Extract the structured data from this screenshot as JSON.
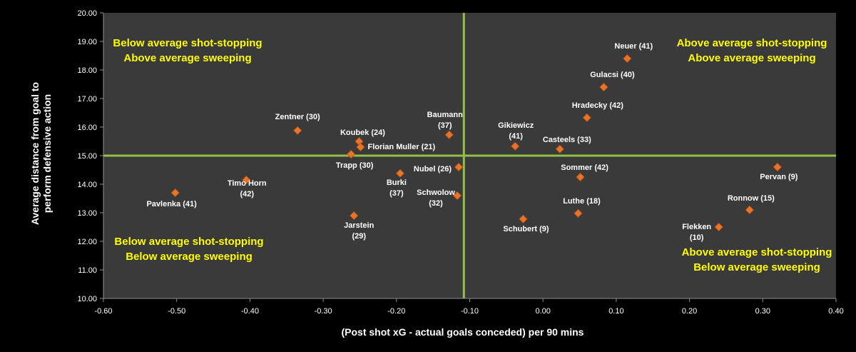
{
  "colors": {
    "background": "#000000",
    "plot_area": "#3a3a3a",
    "reference_line": "#92c047",
    "marker": "#e8742a",
    "quadrant_text": "#ffff00",
    "text": "#ffffff"
  },
  "chart_data": {
    "type": "scatter",
    "xlabel": "(Post shot xG - actual goals conceded) per 90 mins",
    "ylabel": [
      "Average distance from goal to",
      "perform defensive action"
    ],
    "xlim": [
      -0.6,
      0.4
    ],
    "ylim": [
      10.0,
      20.0
    ],
    "x_ticks": [
      "-0.60",
      "-0.50",
      "-0.40",
      "-0.30",
      "-0.20",
      "-0.10",
      "0.00",
      "0.10",
      "0.20",
      "0.30",
      "0.40"
    ],
    "y_ticks": [
      "10.00",
      "11.00",
      "12.00",
      "13.00",
      "14.00",
      "15.00",
      "16.00",
      "17.00",
      "18.00",
      "19.00",
      "20.00"
    ],
    "grid": false,
    "reference_lines": {
      "x": -0.108,
      "y": 15.0
    },
    "quadrant_labels": [
      {
        "lines": [
          "Below average shot-stopping",
          "Above average sweeping"
        ]
      },
      {
        "lines": [
          "Above average shot-stopping",
          "Above average sweeping"
        ]
      },
      {
        "lines": [
          "Below average shot-stopping",
          "Below average sweeping"
        ]
      },
      {
        "lines": [
          "Above average shot-stopping",
          "Below average sweeping"
        ]
      }
    ],
    "points": [
      {
        "label": [
          "Neuer (41)"
        ],
        "x": 0.115,
        "y": 18.4
      },
      {
        "label": [
          "Gulacsi (40)"
        ],
        "x": 0.083,
        "y": 17.4
      },
      {
        "label": [
          "Hradecky (42)"
        ],
        "x": 0.06,
        "y": 16.33
      },
      {
        "label": [
          "Casteels (33)"
        ],
        "x": 0.023,
        "y": 15.23
      },
      {
        "label": [
          "Gikiewicz",
          "(41)"
        ],
        "x": -0.038,
        "y": 15.33
      },
      {
        "label": [
          "Sommer (42)"
        ],
        "x": 0.051,
        "y": 14.25
      },
      {
        "label": [
          "Pervan (9)"
        ],
        "x": 0.32,
        "y": 14.6
      },
      {
        "label": [
          "Ronnow (15)"
        ],
        "x": 0.282,
        "y": 13.1
      },
      {
        "label": [
          "Flekken",
          "(10)"
        ],
        "x": 0.24,
        "y": 12.5
      },
      {
        "label": [
          "Luthe (18)"
        ],
        "x": 0.048,
        "y": 12.98
      },
      {
        "label": [
          "Schubert (9)"
        ],
        "x": -0.027,
        "y": 12.78
      },
      {
        "label": [
          "Baumann",
          "(37)"
        ],
        "x": -0.128,
        "y": 15.73
      },
      {
        "label": [
          "Nubel (26)"
        ],
        "x": -0.115,
        "y": 14.6
      },
      {
        "label": [
          "Schwolow",
          "(32)"
        ],
        "x": -0.117,
        "y": 13.6
      },
      {
        "label": [
          "Burki",
          "(37)"
        ],
        "x": -0.195,
        "y": 14.38
      },
      {
        "label": [
          "Koubek (24)"
        ],
        "x": -0.251,
        "y": 15.5
      },
      {
        "label": [
          "Florian Muller (21)"
        ],
        "x": -0.249,
        "y": 15.3
      },
      {
        "label": [
          "Trapp (30)"
        ],
        "x": -0.262,
        "y": 15.05
      },
      {
        "label": [
          "Jarstein",
          "(29)"
        ],
        "x": -0.258,
        "y": 12.9
      },
      {
        "label": [
          "Zentner (30)"
        ],
        "x": -0.335,
        "y": 15.88
      },
      {
        "label": [
          "Timo Horn",
          "(42)"
        ],
        "x": -0.405,
        "y": 14.15
      },
      {
        "label": [
          "Pavlenka (41)"
        ],
        "x": -0.502,
        "y": 13.7
      }
    ]
  }
}
